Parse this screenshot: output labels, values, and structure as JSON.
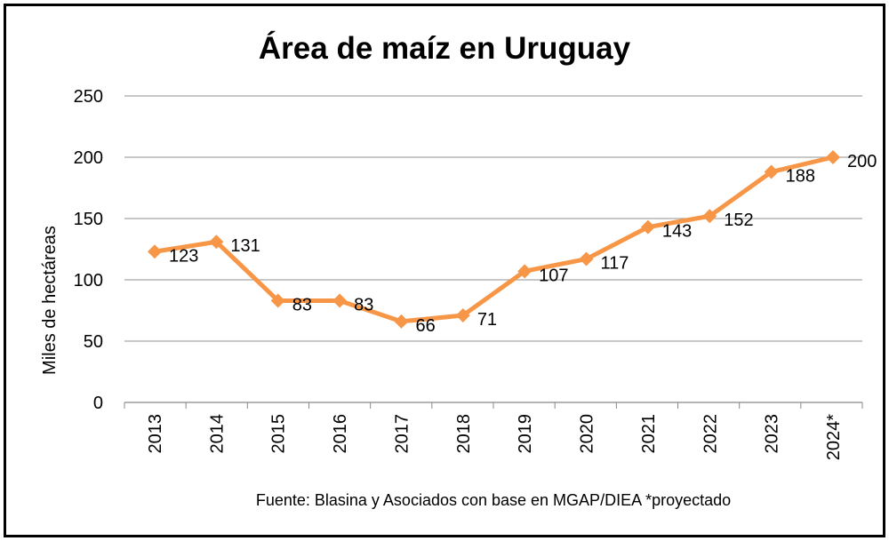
{
  "chart_data": {
    "type": "line",
    "title": "Área de maíz en Uruguay",
    "ylabel": "Miles de hectáreas",
    "xlabel": "",
    "footnote": "Fuente: Blasina y Asociados con base en MGAP/DIEA *proyectado",
    "ylim": [
      0,
      250
    ],
    "yticks": [
      0,
      50,
      100,
      150,
      200,
      250
    ],
    "grid": true,
    "categories": [
      "2013",
      "2014",
      "2015",
      "2016",
      "2017",
      "2018",
      "2019",
      "2020",
      "2021",
      "2022",
      "2023",
      "2024*"
    ],
    "series": [
      {
        "values": [
          123,
          131,
          83,
          83,
          66,
          71,
          107,
          117,
          143,
          152,
          188,
          200
        ],
        "color": "#F79646",
        "marker": "diamond"
      }
    ],
    "gridColor": "#A6A6A6"
  }
}
